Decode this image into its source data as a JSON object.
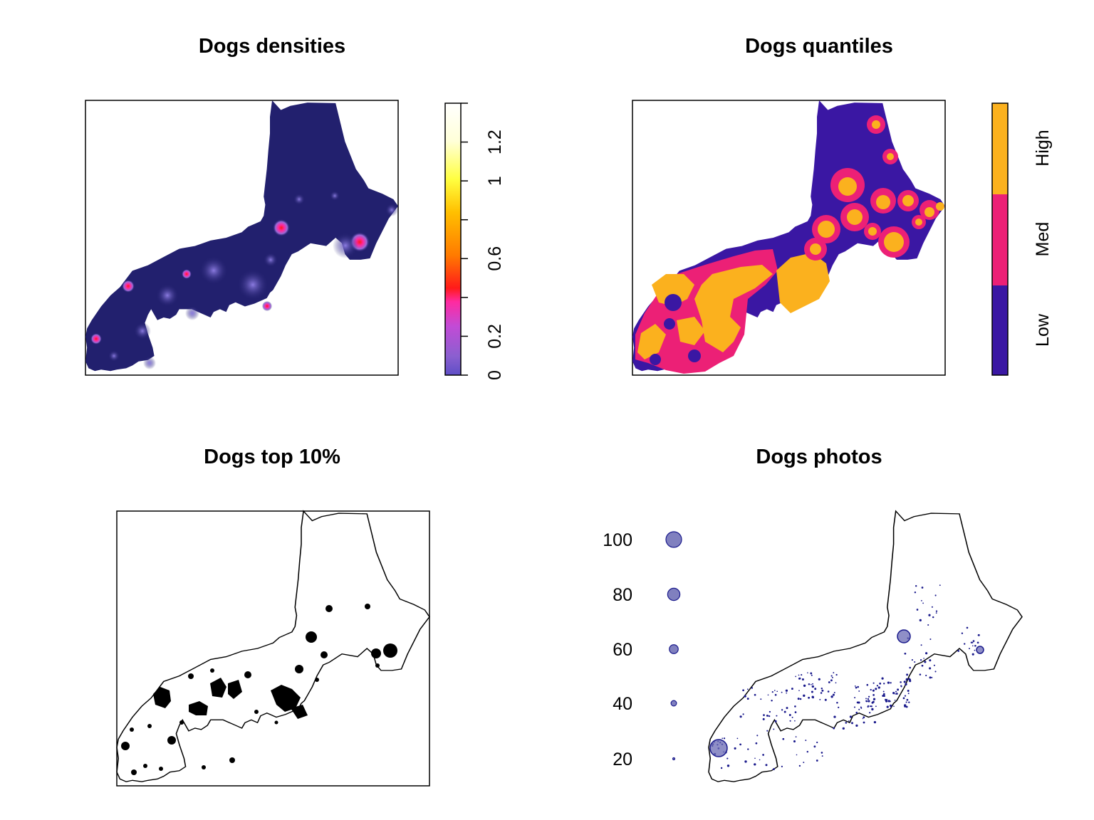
{
  "panels": {
    "densities": {
      "title": "Dogs densities",
      "legend_ticks": [
        "0",
        "0.2",
        "0.6",
        "1",
        "1.2"
      ],
      "legend_tick_values": [
        0,
        0.2,
        0.6,
        1,
        1.2
      ],
      "legend_range": [
        0,
        1.4
      ],
      "colormap": [
        "#5e4fc6",
        "#8b5fd0",
        "#c24bd6",
        "#ff2aa0",
        "#ff1a1a",
        "#ff7a00",
        "#ffc000",
        "#ffff40",
        "#ffffd8",
        "#ffffff"
      ],
      "background_color": "#22206e"
    },
    "quantiles": {
      "title": "Dogs quantiles",
      "legend_ticks": [
        "Low",
        "Med",
        "High"
      ],
      "colors": {
        "Low": "#3a17a3",
        "Med": "#ec2076",
        "High": "#fbb11e"
      }
    },
    "top10": {
      "title": "Dogs top 10%",
      "fill_color": "#000000"
    },
    "photos": {
      "title": "Dogs photos",
      "legend_labels": [
        "100",
        "80",
        "60",
        "40",
        "20"
      ],
      "legend_values": [
        100,
        80,
        60,
        40,
        20
      ],
      "point_color": "#1a1a8c",
      "bubble_fill": "#6a6ab4"
    }
  }
}
